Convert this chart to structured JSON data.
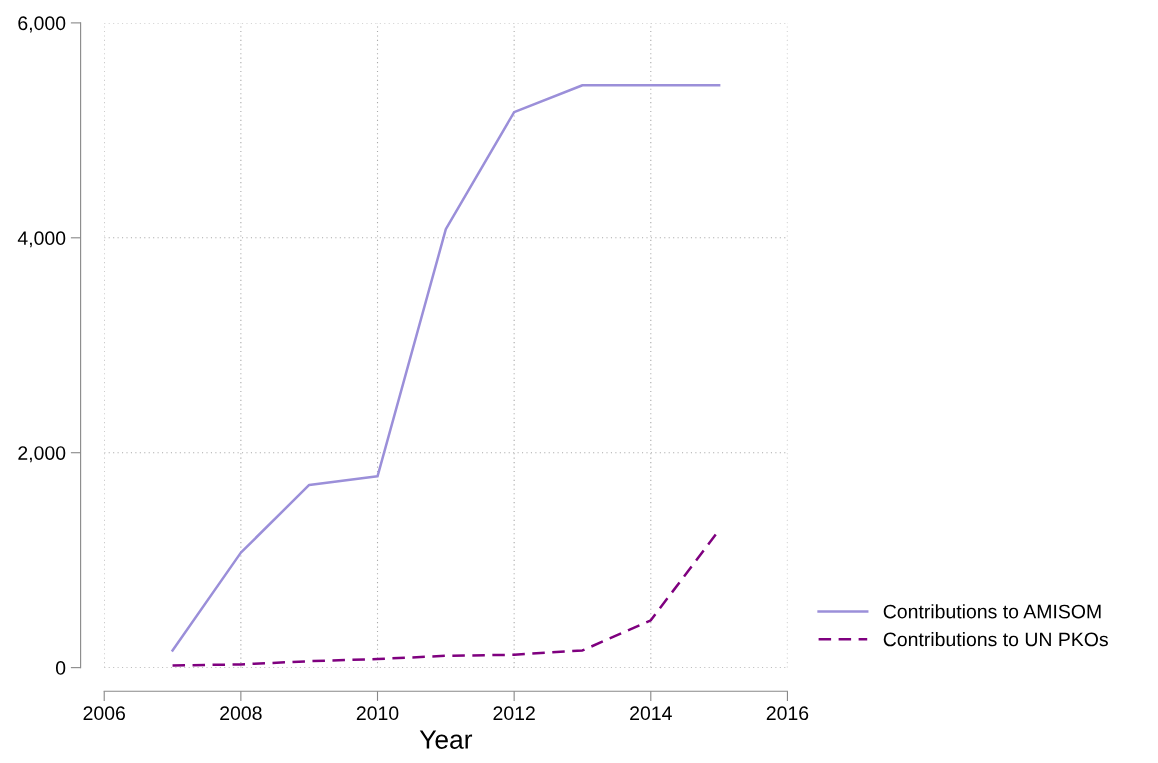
{
  "chart_data": {
    "type": "line",
    "xlabel": "Year",
    "x": [
      2007,
      2008,
      2009,
      2010,
      2011,
      2012,
      2013,
      2014,
      2015
    ],
    "series": [
      {
        "name": "Contributions to AMISOM",
        "color": "#9b8fd9",
        "line_style": "solid",
        "values": [
          160,
          1070,
          1700,
          1780,
          4080,
          5170,
          5420,
          5420,
          5420
        ]
      },
      {
        "name": "Contributions to UN PKOs",
        "color": "#7f007f",
        "line_style": "dashed",
        "values": [
          20,
          30,
          60,
          80,
          110,
          120,
          160,
          440,
          1280
        ]
      }
    ],
    "xlim": [
      2006,
      2016
    ],
    "xticks": [
      2006,
      2008,
      2010,
      2012,
      2014,
      2016
    ],
    "ylim": [
      0,
      6000
    ],
    "yticks": [
      {
        "value": 0,
        "label": "0"
      },
      {
        "value": 2000,
        "label": "2,000"
      },
      {
        "value": 4000,
        "label": "4,000"
      },
      {
        "value": 6000,
        "label": "6,000"
      }
    ],
    "grid": true,
    "legend": "bottom right",
    "marker": "none"
  }
}
